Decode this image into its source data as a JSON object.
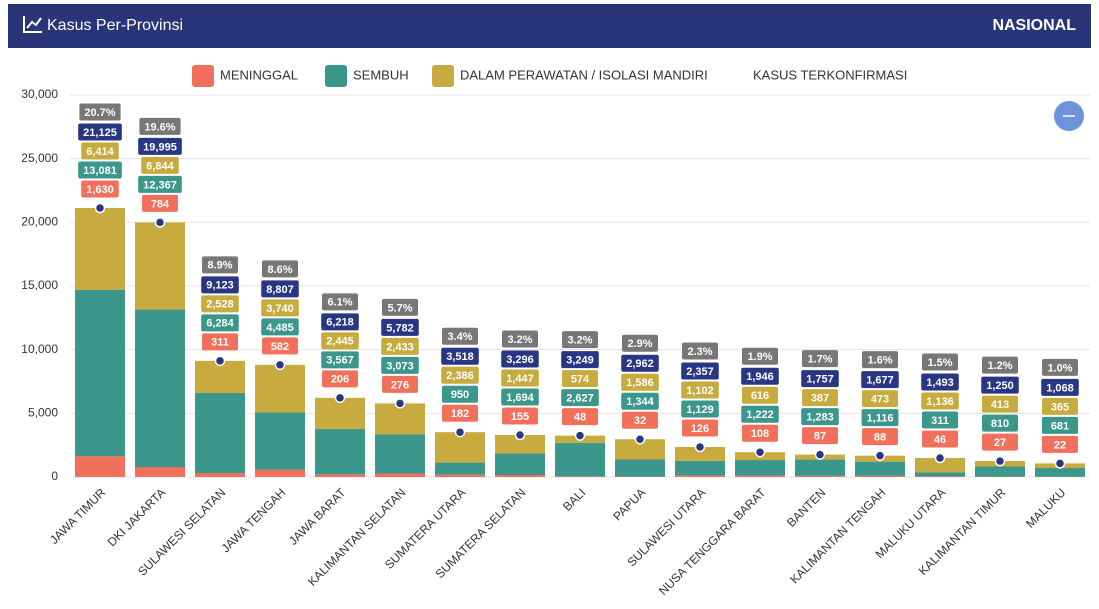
{
  "header": {
    "title": "Kasus Per-Provinsi",
    "scope": "NASIONAL"
  },
  "chart_data": {
    "type": "bar",
    "stacked": true,
    "categories": [
      "JAWA TIMUR",
      "DKI JAKARTA",
      "SULAWESI SELATAN",
      "JAWA TENGAH",
      "JAWA BARAT",
      "KALIMANTAN SELATAN",
      "SUMATERA UTARA",
      "SUMATERA SELATAN",
      "BALI",
      "PAPUA",
      "SULAWESI UTARA",
      "NUSA TENGGARA BARAT",
      "BANTEN",
      "KALIMANTAN TENGAH",
      "MALUKU UTARA",
      "KALIMANTAN TIMUR",
      "MALUKU"
    ],
    "series": [
      {
        "name": "MENINGGAL",
        "type": "bar",
        "color": "#f0705c",
        "values": [
          1630,
          784,
          311,
          582,
          206,
          276,
          182,
          155,
          48,
          32,
          126,
          108,
          87,
          88,
          46,
          27,
          22
        ],
        "value_labels": [
          "1,630",
          "784",
          "311",
          "582",
          "206",
          "276",
          "182",
          "155",
          "48",
          "32",
          "126",
          "108",
          "87",
          "88",
          "46",
          "27",
          "22"
        ]
      },
      {
        "name": "SEMBUH",
        "type": "bar",
        "color": "#3b968c",
        "values": [
          13081,
          12367,
          6284,
          4485,
          3567,
          3073,
          950,
          1694,
          2627,
          1344,
          1129,
          1222,
          1283,
          1116,
          311,
          810,
          681
        ],
        "value_labels": [
          "13,081",
          "12,367",
          "6,284",
          "4,485",
          "3,567",
          "3,073",
          "950",
          "1,694",
          "2,627",
          "1,344",
          "1,129",
          "1,222",
          "1,283",
          "1,116",
          "311",
          "810",
          "681"
        ]
      },
      {
        "name": "DALAM PERAWATAN / ISOLASI MANDIRI",
        "type": "bar",
        "color": "#c8ab3e",
        "values": [
          6414,
          6844,
          2528,
          3740,
          2445,
          2433,
          2386,
          1447,
          574,
          1586,
          1102,
          616,
          387,
          473,
          1136,
          413,
          365
        ],
        "value_labels": [
          "6,414",
          "6,844",
          "2,528",
          "3,740",
          "2,445",
          "2,433",
          "2,386",
          "1,447",
          "574",
          "1,586",
          "1,102",
          "616",
          "387",
          "473",
          "1,136",
          "413",
          "365"
        ]
      },
      {
        "name": "KASUS TERKONFIRMASI",
        "type": "point",
        "color": "#283683",
        "values": [
          21125,
          19995,
          9123,
          8807,
          6218,
          5782,
          3518,
          3296,
          3249,
          2962,
          2357,
          1946,
          1757,
          1677,
          1493,
          1250,
          1068
        ],
        "value_labels": [
          "21,125",
          "19,995",
          "9,123",
          "8,807",
          "6,218",
          "5,782",
          "3,518",
          "3,296",
          "3,249",
          "2,962",
          "2,357",
          "1,946",
          "1,757",
          "1,677",
          "1,493",
          "1,250",
          "1,068"
        ]
      }
    ],
    "shares": {
      "color": "#777777",
      "values": [
        20.7,
        19.6,
        8.9,
        8.6,
        6.1,
        5.7,
        3.4,
        3.2,
        3.2,
        2.9,
        2.3,
        1.9,
        1.7,
        1.6,
        1.5,
        1.2,
        1.0
      ],
      "value_labels": [
        "20.7%",
        "19.6%",
        "8.9%",
        "8.6%",
        "6.1%",
        "5.7%",
        "3.4%",
        "3.2%",
        "3.2%",
        "2.9%",
        "2.3%",
        "1.9%",
        "1.7%",
        "1.6%",
        "1.5%",
        "1.2%",
        "1.0%"
      ]
    },
    "ylim": [
      0,
      30000
    ],
    "yticks": [
      0,
      {
        "value": 5000,
        "label": "5,000"
      },
      {
        "value": 10000,
        "label": "10,000"
      },
      {
        "value": 15000,
        "label": "15,000"
      },
      {
        "value": 20000,
        "label": "20,000"
      },
      {
        "value": 25000,
        "label": "25,000"
      },
      {
        "value": 30000,
        "label": "30,000"
      }
    ],
    "grid": true,
    "legend": "top"
  }
}
